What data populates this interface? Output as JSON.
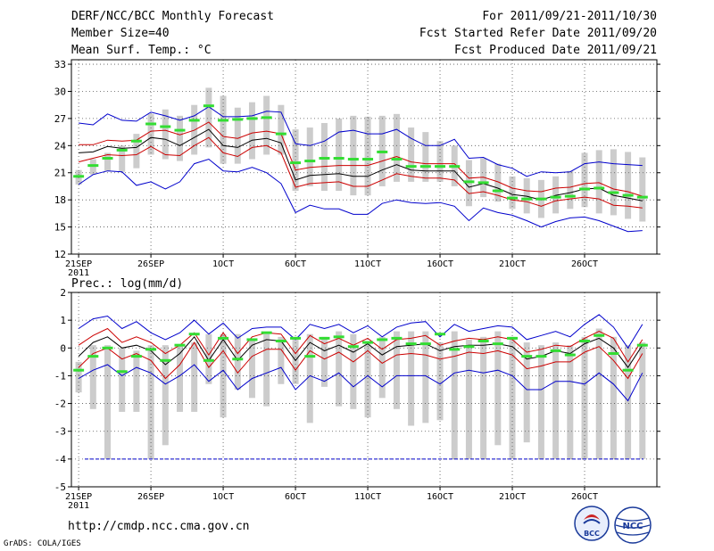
{
  "header": {
    "title": "DERF/NCC/BCC Monthly Forecast",
    "member_size": "Member Size=40",
    "variable_top": "Mean Surf. Temp.: °C",
    "period": "For 2011/09/21-2011/10/30",
    "started": "Fcst Started Refer Date 2011/09/20",
    "produced": "Fcst Produced Date 2011/09/21"
  },
  "footer": {
    "url": "http://cmdp.ncc.cma.gov.cn",
    "grads": "GrADS: COLA/IGES",
    "logo_left": "BCC",
    "logo_right": "NCC"
  },
  "colors": {
    "max": "#0000cc",
    "min": "#0000cc",
    "spread": "#cc0000",
    "mean": "#000000",
    "box": "#cccccc",
    "marker": "#33dd33"
  },
  "chart_data": [
    {
      "type": "line",
      "name": "temperature",
      "title": "Mean Surf. Temp.: °C",
      "x": [
        0,
        1,
        2,
        3,
        4,
        5,
        6,
        7,
        8,
        9,
        10,
        11,
        12,
        13,
        14,
        15,
        16,
        17,
        18,
        19,
        20,
        21,
        22,
        23,
        24,
        25,
        26,
        27,
        28,
        29,
        30,
        31,
        32,
        33,
        34,
        35,
        36,
        37,
        38,
        39
      ],
      "xticks": {
        "positions": [
          0,
          5,
          10,
          15,
          20,
          25,
          30,
          35
        ],
        "labels": [
          "21SEP",
          "26SEP",
          "1OCT",
          "6OCT",
          "11OCT",
          "16OCT",
          "21OCT",
          "26OCT"
        ]
      },
      "year_label": "2011",
      "ylim": [
        12,
        33.5
      ],
      "yticks": [
        12,
        15,
        18,
        21,
        24,
        27,
        30,
        33
      ],
      "series": [
        {
          "name": "max",
          "values": [
            26.5,
            26.3,
            27.5,
            26.8,
            26.7,
            27.7,
            27.3,
            26.8,
            27.3,
            28.3,
            27.2,
            27.2,
            27.3,
            27.8,
            27.7,
            24.2,
            24.0,
            24.5,
            25.5,
            25.7,
            25.3,
            25.3,
            25.8,
            24.8,
            24.0,
            24.0,
            24.7,
            22.6,
            22.7,
            21.9,
            21.5,
            20.6,
            21.1,
            21.0,
            21.1,
            22.0,
            22.2,
            22.0,
            21.9,
            21.8
          ]
        },
        {
          "name": "upper",
          "values": [
            24.1,
            24.1,
            24.6,
            24.5,
            24.6,
            25.6,
            25.7,
            25.2,
            25.7,
            26.6,
            25.0,
            24.8,
            25.4,
            25.6,
            25.3,
            21.3,
            21.6,
            21.7,
            21.8,
            21.8,
            21.8,
            22.3,
            22.8,
            22.2,
            22.0,
            22.0,
            22.0,
            20.4,
            20.5,
            20.0,
            19.3,
            19.0,
            18.9,
            19.3,
            19.4,
            19.8,
            19.9,
            19.2,
            18.9,
            18.4
          ]
        },
        {
          "name": "mean",
          "values": [
            23.2,
            23.3,
            23.9,
            23.7,
            23.8,
            24.9,
            24.7,
            24.0,
            24.9,
            25.8,
            24.0,
            23.8,
            24.6,
            24.8,
            24.3,
            20.2,
            20.7,
            20.8,
            20.9,
            20.6,
            20.6,
            21.3,
            21.9,
            21.3,
            21.2,
            21.2,
            21.2,
            19.4,
            19.8,
            19.3,
            18.6,
            18.4,
            18.0,
            18.5,
            18.8,
            19.2,
            19.3,
            18.5,
            18.2,
            17.9
          ]
        },
        {
          "name": "lower",
          "values": [
            22.2,
            22.6,
            23.0,
            22.9,
            23.0,
            23.9,
            23.0,
            22.9,
            24.0,
            24.9,
            23.2,
            22.8,
            23.8,
            24.0,
            23.2,
            19.4,
            19.8,
            19.9,
            20.0,
            19.5,
            19.5,
            20.2,
            20.9,
            20.6,
            20.4,
            20.4,
            20.2,
            18.7,
            18.9,
            18.5,
            18.0,
            17.8,
            17.3,
            17.9,
            18.1,
            18.3,
            18.1,
            17.4,
            17.3,
            17.1
          ]
        },
        {
          "name": "min",
          "values": [
            19.7,
            20.8,
            21.2,
            21.1,
            19.6,
            20.0,
            19.2,
            20.0,
            22.0,
            22.5,
            21.2,
            21.1,
            21.6,
            21.0,
            19.8,
            16.6,
            17.4,
            17.0,
            17.0,
            16.4,
            16.4,
            17.6,
            18.0,
            17.7,
            17.6,
            17.7,
            17.3,
            15.7,
            17.1,
            16.6,
            16.3,
            15.7,
            15.0,
            15.6,
            16.0,
            16.1,
            15.7,
            15.1,
            14.5,
            14.6
          ]
        }
      ],
      "boxes": [
        [
          19.7,
          21.3
        ],
        [
          20.8,
          22.5
        ],
        [
          21.2,
          23.2
        ],
        [
          21.1,
          24.0
        ],
        [
          21.5,
          25.3
        ],
        [
          23.0,
          27.5
        ],
        [
          22.5,
          28.0
        ],
        [
          22.3,
          27.3
        ],
        [
          23.0,
          28.5
        ],
        [
          23.8,
          30.4
        ],
        [
          22.0,
          29.5
        ],
        [
          22.0,
          28.2
        ],
        [
          22.5,
          28.8
        ],
        [
          23.0,
          29.5
        ],
        [
          23.0,
          28.5
        ],
        [
          19.0,
          25.8
        ],
        [
          19.5,
          26.0
        ],
        [
          19.0,
          26.5
        ],
        [
          19.0,
          27.0
        ],
        [
          18.5,
          27.3
        ],
        [
          18.5,
          27.2
        ],
        [
          19.5,
          27.3
        ],
        [
          20.0,
          27.5
        ],
        [
          20.0,
          26.0
        ],
        [
          20.0,
          25.5
        ],
        [
          20.0,
          24.5
        ],
        [
          19.5,
          24.0
        ],
        [
          17.3,
          22.4
        ],
        [
          18.3,
          22.6
        ],
        [
          17.8,
          22.0
        ],
        [
          17.0,
          20.6
        ],
        [
          16.5,
          20.4
        ],
        [
          16.0,
          20.2
        ],
        [
          16.5,
          20.6
        ],
        [
          17.0,
          21.2
        ],
        [
          17.2,
          23.2
        ],
        [
          16.5,
          23.5
        ],
        [
          16.3,
          23.6
        ],
        [
          15.9,
          23.3
        ],
        [
          15.6,
          22.7
        ]
      ],
      "markers": [
        20.6,
        21.8,
        22.6,
        23.5,
        24.5,
        26.4,
        26.1,
        25.7,
        26.8,
        28.4,
        26.8,
        26.9,
        27.0,
        27.1,
        25.3,
        22.1,
        22.3,
        22.6,
        22.6,
        22.5,
        22.5,
        23.3,
        22.5,
        21.7,
        21.7,
        21.7,
        21.7,
        20.0,
        19.9,
        19.0,
        18.2,
        18.1,
        18.1,
        18.3,
        18.4,
        19.2,
        19.3,
        18.8,
        18.5,
        18.3
      ]
    },
    {
      "type": "line",
      "name": "precipitation",
      "title": "Prec.: log(mm/d)",
      "x": [
        0,
        1,
        2,
        3,
        4,
        5,
        6,
        7,
        8,
        9,
        10,
        11,
        12,
        13,
        14,
        15,
        16,
        17,
        18,
        19,
        20,
        21,
        22,
        23,
        24,
        25,
        26,
        27,
        28,
        29,
        30,
        31,
        32,
        33,
        34,
        35,
        36,
        37,
        38,
        39
      ],
      "xticks": {
        "positions": [
          0,
          5,
          10,
          15,
          20,
          25,
          30,
          35
        ],
        "labels": [
          "21SEP",
          "26SEP",
          "1OCT",
          "6OCT",
          "11OCT",
          "16OCT",
          "21OCT",
          "26OCT"
        ]
      },
      "year_label": "2011",
      "ylim": [
        -5,
        2
      ],
      "yticks": [
        -5,
        -4,
        -3,
        -2,
        -1,
        0,
        1,
        2
      ],
      "series": [
        {
          "name": "max",
          "values": [
            0.7,
            1.05,
            1.15,
            0.7,
            0.95,
            0.55,
            0.3,
            0.55,
            1.0,
            0.5,
            0.9,
            0.35,
            0.7,
            0.75,
            0.75,
            0.3,
            0.85,
            0.7,
            0.85,
            0.55,
            0.8,
            0.4,
            0.75,
            0.9,
            0.95,
            0.4,
            0.85,
            0.6,
            0.7,
            0.8,
            0.75,
            0.3,
            0.45,
            0.6,
            0.4,
            0.85,
            1.2,
            0.75,
            0.0,
            0.85
          ]
        },
        {
          "name": "upper",
          "values": [
            0.1,
            0.45,
            0.7,
            0.2,
            0.4,
            0.2,
            -0.2,
            0.1,
            0.55,
            -0.25,
            0.55,
            -0.2,
            0.4,
            0.55,
            0.5,
            -0.2,
            0.45,
            0.15,
            0.35,
            0.1,
            0.35,
            -0.05,
            0.3,
            0.35,
            0.45,
            0.1,
            0.25,
            0.35,
            0.3,
            0.4,
            0.3,
            -0.15,
            -0.05,
            0.1,
            0.05,
            0.35,
            0.6,
            0.35,
            -0.5,
            0.3
          ]
        },
        {
          "name": "mean",
          "values": [
            -0.3,
            0.2,
            0.4,
            0.0,
            0.1,
            -0.1,
            -0.6,
            -0.2,
            0.4,
            -0.45,
            0.3,
            -0.45,
            0.1,
            0.3,
            0.25,
            -0.45,
            0.2,
            -0.1,
            0.1,
            -0.15,
            0.15,
            -0.25,
            0.05,
            0.1,
            0.15,
            -0.1,
            0.05,
            0.1,
            0.1,
            0.15,
            0.05,
            -0.4,
            -0.3,
            -0.1,
            -0.2,
            0.15,
            0.35,
            0.0,
            -0.7,
            0.1
          ]
        },
        {
          "name": "lower",
          "values": [
            -0.7,
            -0.2,
            0.0,
            -0.4,
            -0.2,
            -0.45,
            -1.1,
            -0.6,
            0.2,
            -0.7,
            -0.1,
            -0.9,
            -0.3,
            -0.05,
            -0.05,
            -0.8,
            -0.1,
            -0.4,
            -0.15,
            -0.5,
            -0.1,
            -0.55,
            -0.25,
            -0.2,
            -0.25,
            -0.4,
            -0.3,
            -0.15,
            -0.2,
            -0.1,
            -0.25,
            -0.75,
            -0.65,
            -0.5,
            -0.5,
            -0.15,
            0.05,
            -0.45,
            -1.1,
            -0.2
          ]
        },
        {
          "name": "min",
          "values": [
            -1.1,
            -0.8,
            -0.6,
            -1.0,
            -0.7,
            -0.9,
            -1.3,
            -1.0,
            -0.6,
            -1.2,
            -0.8,
            -1.5,
            -1.1,
            -0.9,
            -0.7,
            -1.5,
            -1.0,
            -1.2,
            -0.9,
            -1.4,
            -1.0,
            -1.4,
            -1.0,
            -1.0,
            -1.0,
            -1.3,
            -0.9,
            -0.8,
            -0.9,
            -0.8,
            -1.0,
            -1.5,
            -1.5,
            -1.2,
            -1.2,
            -1.3,
            -0.9,
            -1.3,
            -1.9,
            -0.9
          ]
        }
      ],
      "floor_line": -4,
      "boxes": [
        [
          -1.6,
          -0.5
        ],
        [
          -2.2,
          0.1
        ],
        [
          -4.0,
          0.1
        ],
        [
          -2.3,
          0.0
        ],
        [
          -2.3,
          -0.1
        ],
        [
          -4.0,
          0.1
        ],
        [
          -3.5,
          0.1
        ],
        [
          -2.3,
          0.1
        ],
        [
          -2.3,
          0.2
        ],
        [
          -1.3,
          0.5
        ],
        [
          -2.5,
          0.5
        ],
        [
          -1.5,
          0.5
        ],
        [
          -1.8,
          0.3
        ],
        [
          -2.1,
          0.5
        ],
        [
          -1.3,
          0.4
        ],
        [
          -1.3,
          0.4
        ],
        [
          -2.7,
          0.5
        ],
        [
          -1.4,
          0.4
        ],
        [
          -2.1,
          0.6
        ],
        [
          -2.2,
          0.5
        ],
        [
          -2.5,
          0.2
        ],
        [
          -1.8,
          0.4
        ],
        [
          -2.2,
          0.6
        ],
        [
          -2.8,
          0.6
        ],
        [
          -2.7,
          0.6
        ],
        [
          -2.6,
          0.2
        ],
        [
          -4.0,
          0.6
        ],
        [
          -4.0,
          0.3
        ],
        [
          -4.0,
          0.4
        ],
        [
          -3.5,
          0.6
        ],
        [
          -4.0,
          0.4
        ],
        [
          -3.4,
          0.2
        ],
        [
          -4.0,
          0.1
        ],
        [
          -4.0,
          0.2
        ],
        [
          -4.0,
          0.1
        ],
        [
          -4.0,
          0.4
        ],
        [
          -4.0,
          0.7
        ],
        [
          -4.0,
          0.4
        ],
        [
          -4.0,
          0.1
        ],
        [
          -4.0,
          0.2
        ]
      ],
      "markers": [
        -0.8,
        -0.3,
        0.0,
        -0.85,
        -0.3,
        -0.05,
        -0.45,
        0.1,
        0.5,
        -0.45,
        0.35,
        -0.4,
        0.3,
        0.55,
        0.25,
        0.35,
        -0.3,
        0.35,
        0.4,
        0.05,
        0.2,
        0.3,
        0.35,
        0.15,
        0.15,
        0.5,
        -0.05,
        0.05,
        0.25,
        0.15,
        0.35,
        -0.3,
        -0.3,
        -0.1,
        -0.25,
        0.25,
        0.45,
        -0.2,
        -0.8,
        0.1
      ]
    }
  ]
}
